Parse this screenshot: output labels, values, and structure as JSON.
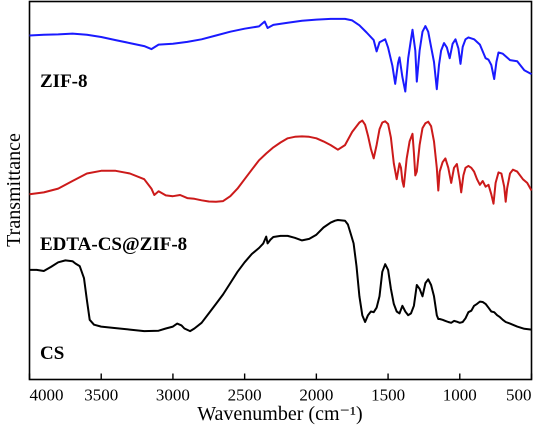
{
  "chart_data": {
    "type": "line",
    "xlabel": "Wavenumber (cm⁻¹)",
    "ylabel": "Transmittance",
    "xlim": [
      4000,
      500
    ],
    "x_reversed": true,
    "xticks": [
      4000,
      3500,
      3000,
      2500,
      2000,
      1500,
      1000,
      500
    ],
    "ylim": [
      0,
      1
    ],
    "y_tick_labels_shown": false,
    "grid": false,
    "legend": "none",
    "series": [
      {
        "name": "ZIF-8",
        "color": "#1a1aff",
        "points": [
          [
            4000,
            0.91
          ],
          [
            3900,
            0.912
          ],
          [
            3800,
            0.913
          ],
          [
            3700,
            0.915
          ],
          [
            3600,
            0.912
          ],
          [
            3500,
            0.906
          ],
          [
            3400,
            0.898
          ],
          [
            3300,
            0.89
          ],
          [
            3200,
            0.882
          ],
          [
            3150,
            0.874
          ],
          [
            3100,
            0.886
          ],
          [
            3000,
            0.888
          ],
          [
            2900,
            0.893
          ],
          [
            2800,
            0.9
          ],
          [
            2700,
            0.91
          ],
          [
            2600,
            0.92
          ],
          [
            2500,
            0.928
          ],
          [
            2400,
            0.934
          ],
          [
            2360,
            0.947
          ],
          [
            2340,
            0.93
          ],
          [
            2300,
            0.938
          ],
          [
            2200,
            0.944
          ],
          [
            2100,
            0.949
          ],
          [
            2000,
            0.952
          ],
          [
            1900,
            0.954
          ],
          [
            1800,
            0.954
          ],
          [
            1750,
            0.95
          ],
          [
            1700,
            0.937
          ],
          [
            1650,
            0.918
          ],
          [
            1600,
            0.898
          ],
          [
            1580,
            0.868
          ],
          [
            1560,
            0.892
          ],
          [
            1520,
            0.9
          ],
          [
            1500,
            0.878
          ],
          [
            1470,
            0.83
          ],
          [
            1450,
            0.782
          ],
          [
            1430,
            0.838
          ],
          [
            1420,
            0.852
          ],
          [
            1400,
            0.8
          ],
          [
            1380,
            0.762
          ],
          [
            1360,
            0.85
          ],
          [
            1340,
            0.9
          ],
          [
            1330,
            0.925
          ],
          [
            1310,
            0.87
          ],
          [
            1300,
            0.788
          ],
          [
            1280,
            0.87
          ],
          [
            1260,
            0.92
          ],
          [
            1240,
            0.935
          ],
          [
            1220,
            0.92
          ],
          [
            1200,
            0.88
          ],
          [
            1180,
            0.84
          ],
          [
            1160,
            0.768
          ],
          [
            1145,
            0.832
          ],
          [
            1130,
            0.87
          ],
          [
            1110,
            0.89
          ],
          [
            1090,
            0.878
          ],
          [
            1070,
            0.85
          ],
          [
            1050,
            0.888
          ],
          [
            1030,
            0.9
          ],
          [
            1010,
            0.876
          ],
          [
            995,
            0.835
          ],
          [
            980,
            0.88
          ],
          [
            960,
            0.9
          ],
          [
            940,
            0.905
          ],
          [
            900,
            0.9
          ],
          [
            860,
            0.886
          ],
          [
            820,
            0.85
          ],
          [
            800,
            0.846
          ],
          [
            780,
            0.832
          ],
          [
            760,
            0.795
          ],
          [
            745,
            0.84
          ],
          [
            730,
            0.865
          ],
          [
            700,
            0.862
          ],
          [
            650,
            0.845
          ],
          [
            600,
            0.842
          ],
          [
            550,
            0.818
          ],
          [
            500,
            0.808
          ]
        ]
      },
      {
        "name": "EDTA-CS@ZIF-8",
        "color": "#cc1a1a",
        "points": [
          [
            4000,
            0.49
          ],
          [
            3900,
            0.495
          ],
          [
            3800,
            0.505
          ],
          [
            3700,
            0.525
          ],
          [
            3600,
            0.545
          ],
          [
            3500,
            0.552
          ],
          [
            3400,
            0.552
          ],
          [
            3300,
            0.545
          ],
          [
            3200,
            0.53
          ],
          [
            3150,
            0.505
          ],
          [
            3130,
            0.488
          ],
          [
            3100,
            0.498
          ],
          [
            3050,
            0.487
          ],
          [
            3000,
            0.485
          ],
          [
            2950,
            0.488
          ],
          [
            2900,
            0.48
          ],
          [
            2850,
            0.478
          ],
          [
            2800,
            0.474
          ],
          [
            2750,
            0.471
          ],
          [
            2700,
            0.47
          ],
          [
            2650,
            0.472
          ],
          [
            2600,
            0.485
          ],
          [
            2550,
            0.505
          ],
          [
            2500,
            0.53
          ],
          [
            2450,
            0.555
          ],
          [
            2400,
            0.58
          ],
          [
            2350,
            0.598
          ],
          [
            2300,
            0.614
          ],
          [
            2250,
            0.627
          ],
          [
            2200,
            0.638
          ],
          [
            2150,
            0.642
          ],
          [
            2100,
            0.643
          ],
          [
            2050,
            0.642
          ],
          [
            2000,
            0.638
          ],
          [
            1950,
            0.63
          ],
          [
            1900,
            0.62
          ],
          [
            1850,
            0.608
          ],
          [
            1800,
            0.62
          ],
          [
            1750,
            0.655
          ],
          [
            1700,
            0.68
          ],
          [
            1680,
            0.685
          ],
          [
            1660,
            0.674
          ],
          [
            1640,
            0.645
          ],
          [
            1620,
            0.61
          ],
          [
            1600,
            0.585
          ],
          [
            1580,
            0.62
          ],
          [
            1560,
            0.662
          ],
          [
            1540,
            0.68
          ],
          [
            1520,
            0.683
          ],
          [
            1500,
            0.676
          ],
          [
            1480,
            0.64
          ],
          [
            1460,
            0.572
          ],
          [
            1440,
            0.53
          ],
          [
            1420,
            0.572
          ],
          [
            1410,
            0.56
          ],
          [
            1400,
            0.525
          ],
          [
            1390,
            0.51
          ],
          [
            1370,
            0.585
          ],
          [
            1350,
            0.63
          ],
          [
            1330,
            0.65
          ],
          [
            1320,
            0.6
          ],
          [
            1310,
            0.54
          ],
          [
            1300,
            0.55
          ],
          [
            1280,
            0.62
          ],
          [
            1260,
            0.665
          ],
          [
            1240,
            0.678
          ],
          [
            1220,
            0.682
          ],
          [
            1200,
            0.67
          ],
          [
            1180,
            0.63
          ],
          [
            1160,
            0.56
          ],
          [
            1150,
            0.5
          ],
          [
            1140,
            0.55
          ],
          [
            1120,
            0.575
          ],
          [
            1100,
            0.585
          ],
          [
            1080,
            0.56
          ],
          [
            1060,
            0.52
          ],
          [
            1040,
            0.56
          ],
          [
            1020,
            0.57
          ],
          [
            1000,
            0.525
          ],
          [
            990,
            0.495
          ],
          [
            975,
            0.54
          ],
          [
            960,
            0.56
          ],
          [
            940,
            0.565
          ],
          [
            920,
            0.56
          ],
          [
            900,
            0.55
          ],
          [
            880,
            0.53
          ],
          [
            860,
            0.515
          ],
          [
            840,
            0.525
          ],
          [
            820,
            0.51
          ],
          [
            800,
            0.515
          ],
          [
            780,
            0.49
          ],
          [
            765,
            0.465
          ],
          [
            750,
            0.52
          ],
          [
            730,
            0.548
          ],
          [
            710,
            0.545
          ],
          [
            690,
            0.51
          ],
          [
            680,
            0.47
          ],
          [
            670,
            0.505
          ],
          [
            650,
            0.545
          ],
          [
            630,
            0.555
          ],
          [
            600,
            0.55
          ],
          [
            560,
            0.53
          ],
          [
            530,
            0.52
          ],
          [
            500,
            0.5
          ]
        ]
      },
      {
        "name": "CS",
        "color": "#000000",
        "points": [
          [
            4000,
            0.29
          ],
          [
            3950,
            0.29
          ],
          [
            3900,
            0.287
          ],
          [
            3850,
            0.298
          ],
          [
            3800,
            0.31
          ],
          [
            3750,
            0.315
          ],
          [
            3700,
            0.313
          ],
          [
            3680,
            0.307
          ],
          [
            3650,
            0.3
          ],
          [
            3620,
            0.268
          ],
          [
            3600,
            0.21
          ],
          [
            3580,
            0.158
          ],
          [
            3550,
            0.145
          ],
          [
            3500,
            0.14
          ],
          [
            3400,
            0.136
          ],
          [
            3300,
            0.132
          ],
          [
            3200,
            0.128
          ],
          [
            3100,
            0.129
          ],
          [
            3050,
            0.135
          ],
          [
            3000,
            0.14
          ],
          [
            2970,
            0.148
          ],
          [
            2940,
            0.143
          ],
          [
            2920,
            0.135
          ],
          [
            2880,
            0.128
          ],
          [
            2850,
            0.135
          ],
          [
            2800,
            0.15
          ],
          [
            2750,
            0.175
          ],
          [
            2700,
            0.2
          ],
          [
            2650,
            0.225
          ],
          [
            2600,
            0.255
          ],
          [
            2550,
            0.285
          ],
          [
            2500,
            0.31
          ],
          [
            2450,
            0.332
          ],
          [
            2400,
            0.348
          ],
          [
            2370,
            0.36
          ],
          [
            2350,
            0.378
          ],
          [
            2340,
            0.36
          ],
          [
            2320,
            0.37
          ],
          [
            2300,
            0.377
          ],
          [
            2250,
            0.38
          ],
          [
            2200,
            0.38
          ],
          [
            2150,
            0.375
          ],
          [
            2100,
            0.368
          ],
          [
            2050,
            0.372
          ],
          [
            2000,
            0.383
          ],
          [
            1950,
            0.402
          ],
          [
            1900,
            0.415
          ],
          [
            1870,
            0.42
          ],
          [
            1850,
            0.422
          ],
          [
            1800,
            0.42
          ],
          [
            1780,
            0.41
          ],
          [
            1760,
            0.385
          ],
          [
            1740,
            0.36
          ],
          [
            1720,
            0.3
          ],
          [
            1700,
            0.22
          ],
          [
            1680,
            0.17
          ],
          [
            1660,
            0.152
          ],
          [
            1640,
            0.17
          ],
          [
            1620,
            0.18
          ],
          [
            1600,
            0.178
          ],
          [
            1580,
            0.19
          ],
          [
            1560,
            0.22
          ],
          [
            1540,
            0.285
          ],
          [
            1520,
            0.305
          ],
          [
            1500,
            0.29
          ],
          [
            1480,
            0.24
          ],
          [
            1460,
            0.2
          ],
          [
            1440,
            0.18
          ],
          [
            1420,
            0.175
          ],
          [
            1400,
            0.195
          ],
          [
            1380,
            0.18
          ],
          [
            1360,
            0.17
          ],
          [
            1340,
            0.175
          ],
          [
            1320,
            0.195
          ],
          [
            1300,
            0.25
          ],
          [
            1280,
            0.24
          ],
          [
            1260,
            0.22
          ],
          [
            1240,
            0.255
          ],
          [
            1220,
            0.265
          ],
          [
            1200,
            0.25
          ],
          [
            1180,
            0.22
          ],
          [
            1160,
            0.17
          ],
          [
            1150,
            0.16
          ],
          [
            1140,
            0.16
          ],
          [
            1120,
            0.158
          ],
          [
            1100,
            0.155
          ],
          [
            1080,
            0.152
          ],
          [
            1060,
            0.15
          ],
          [
            1040,
            0.155
          ],
          [
            1020,
            0.153
          ],
          [
            1000,
            0.15
          ],
          [
            980,
            0.152
          ],
          [
            960,
            0.162
          ],
          [
            940,
            0.178
          ],
          [
            920,
            0.182
          ],
          [
            900,
            0.195
          ],
          [
            880,
            0.2
          ],
          [
            860,
            0.206
          ],
          [
            840,
            0.205
          ],
          [
            820,
            0.2
          ],
          [
            800,
            0.19
          ],
          [
            780,
            0.18
          ],
          [
            760,
            0.178
          ],
          [
            740,
            0.17
          ],
          [
            720,
            0.165
          ],
          [
            700,
            0.158
          ],
          [
            680,
            0.152
          ],
          [
            650,
            0.148
          ],
          [
            600,
            0.14
          ],
          [
            550,
            0.134
          ],
          [
            500,
            0.132
          ]
        ]
      }
    ]
  }
}
